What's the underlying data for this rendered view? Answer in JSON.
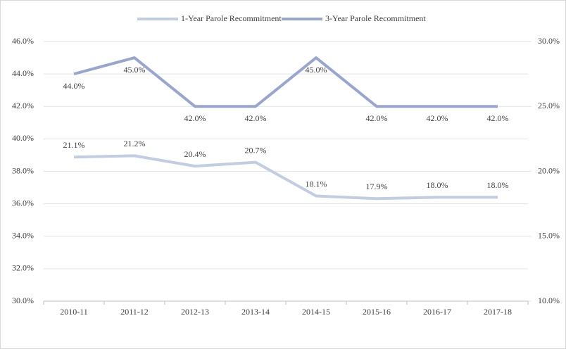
{
  "chart_data": {
    "type": "line",
    "categories": [
      "2010-11",
      "2011-12",
      "2012-13",
      "2013-14",
      "2014-15",
      "2015-16",
      "2016-17",
      "2017-18"
    ],
    "series": [
      {
        "name": "1-Year Parole Recommitment",
        "color": "#c0cde3",
        "axis": "y2",
        "values": [
          21.1,
          21.2,
          20.4,
          20.7,
          18.1,
          17.9,
          18.0,
          18.0
        ],
        "value_labels": [
          "21.1%",
          "21.2%",
          "20.4%",
          "20.7%",
          "18.1%",
          "17.9%",
          "18.0%",
          "18.0%"
        ]
      },
      {
        "name": "3-Year Parole Recommitment",
        "color": "#97a5d0",
        "values": [
          44.0,
          45.0,
          42.0,
          42.0,
          45.0,
          42.0,
          42.0,
          42.0
        ],
        "value_labels": [
          "44.0%",
          "45.0%",
          "42.0%",
          "42.0%",
          "45.0%",
          "42.0%",
          "42.0%",
          "42.0%"
        ]
      }
    ],
    "ylim": [
      30,
      46
    ],
    "yticks": [
      {
        "value": 30,
        "label": "30.0%"
      },
      {
        "value": 32,
        "label": "32.0%"
      },
      {
        "value": 34,
        "label": "34.0%"
      },
      {
        "value": 36,
        "label": "36.0%"
      },
      {
        "value": 38,
        "label": "38.0%"
      },
      {
        "value": 40,
        "label": "40.0%"
      },
      {
        "value": 42,
        "label": "42.0%"
      },
      {
        "value": 44,
        "label": "44.0%"
      },
      {
        "value": 46,
        "label": "46.0%"
      }
    ],
    "y2lim": [
      10,
      30
    ],
    "y2ticks": [
      {
        "value": 10,
        "label": "10.0%"
      },
      {
        "value": 15,
        "label": "15.0%"
      },
      {
        "value": 20,
        "label": "20.0%"
      },
      {
        "value": 25,
        "label": "25.0%"
      },
      {
        "value": 30,
        "label": "30.0%"
      }
    ],
    "grid": true,
    "legend": "top"
  }
}
